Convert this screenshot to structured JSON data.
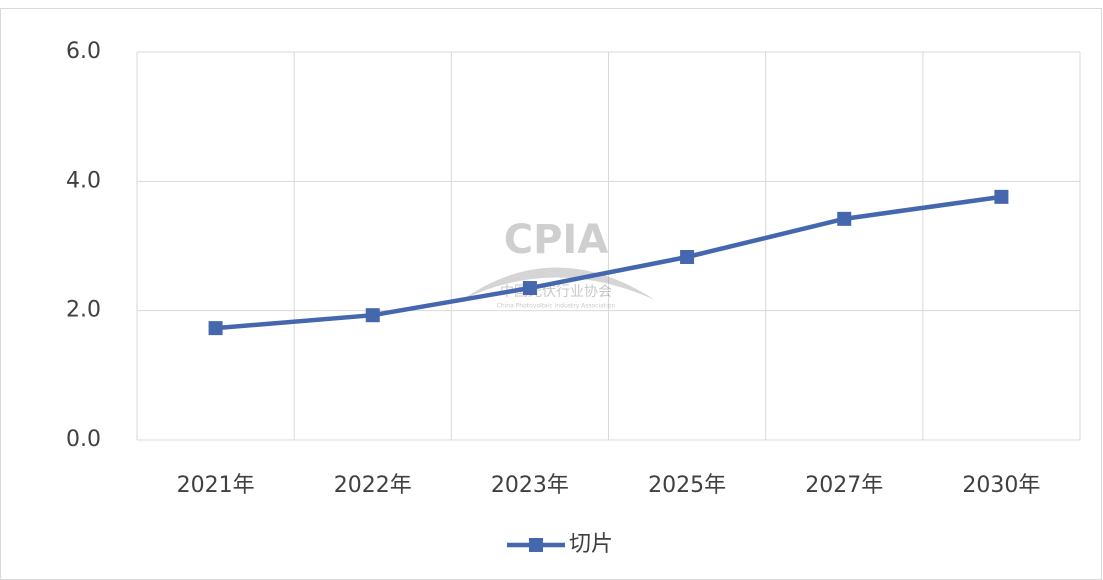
{
  "chart_data": {
    "type": "line",
    "categories": [
      "2021年",
      "2022年",
      "2023年",
      "2025年",
      "2027年",
      "2030年"
    ],
    "series": [
      {
        "name": "切片",
        "color": "#4567ad",
        "values": [
          1.73,
          1.93,
          2.35,
          2.83,
          3.42,
          3.76
        ]
      }
    ],
    "ylim": [
      0,
      6
    ],
    "yticks": [
      {
        "value": 0,
        "label": "0.0"
      },
      {
        "value": 2,
        "label": "2.0"
      },
      {
        "value": 4,
        "label": "4.0"
      },
      {
        "value": 6,
        "label": "6.0"
      }
    ],
    "grid": true,
    "legend": "bottom",
    "watermark": {
      "logo": "CPIA",
      "name": "中国光伏行业协会",
      "subtitle": "China Photovoltaic Industry Association"
    }
  }
}
